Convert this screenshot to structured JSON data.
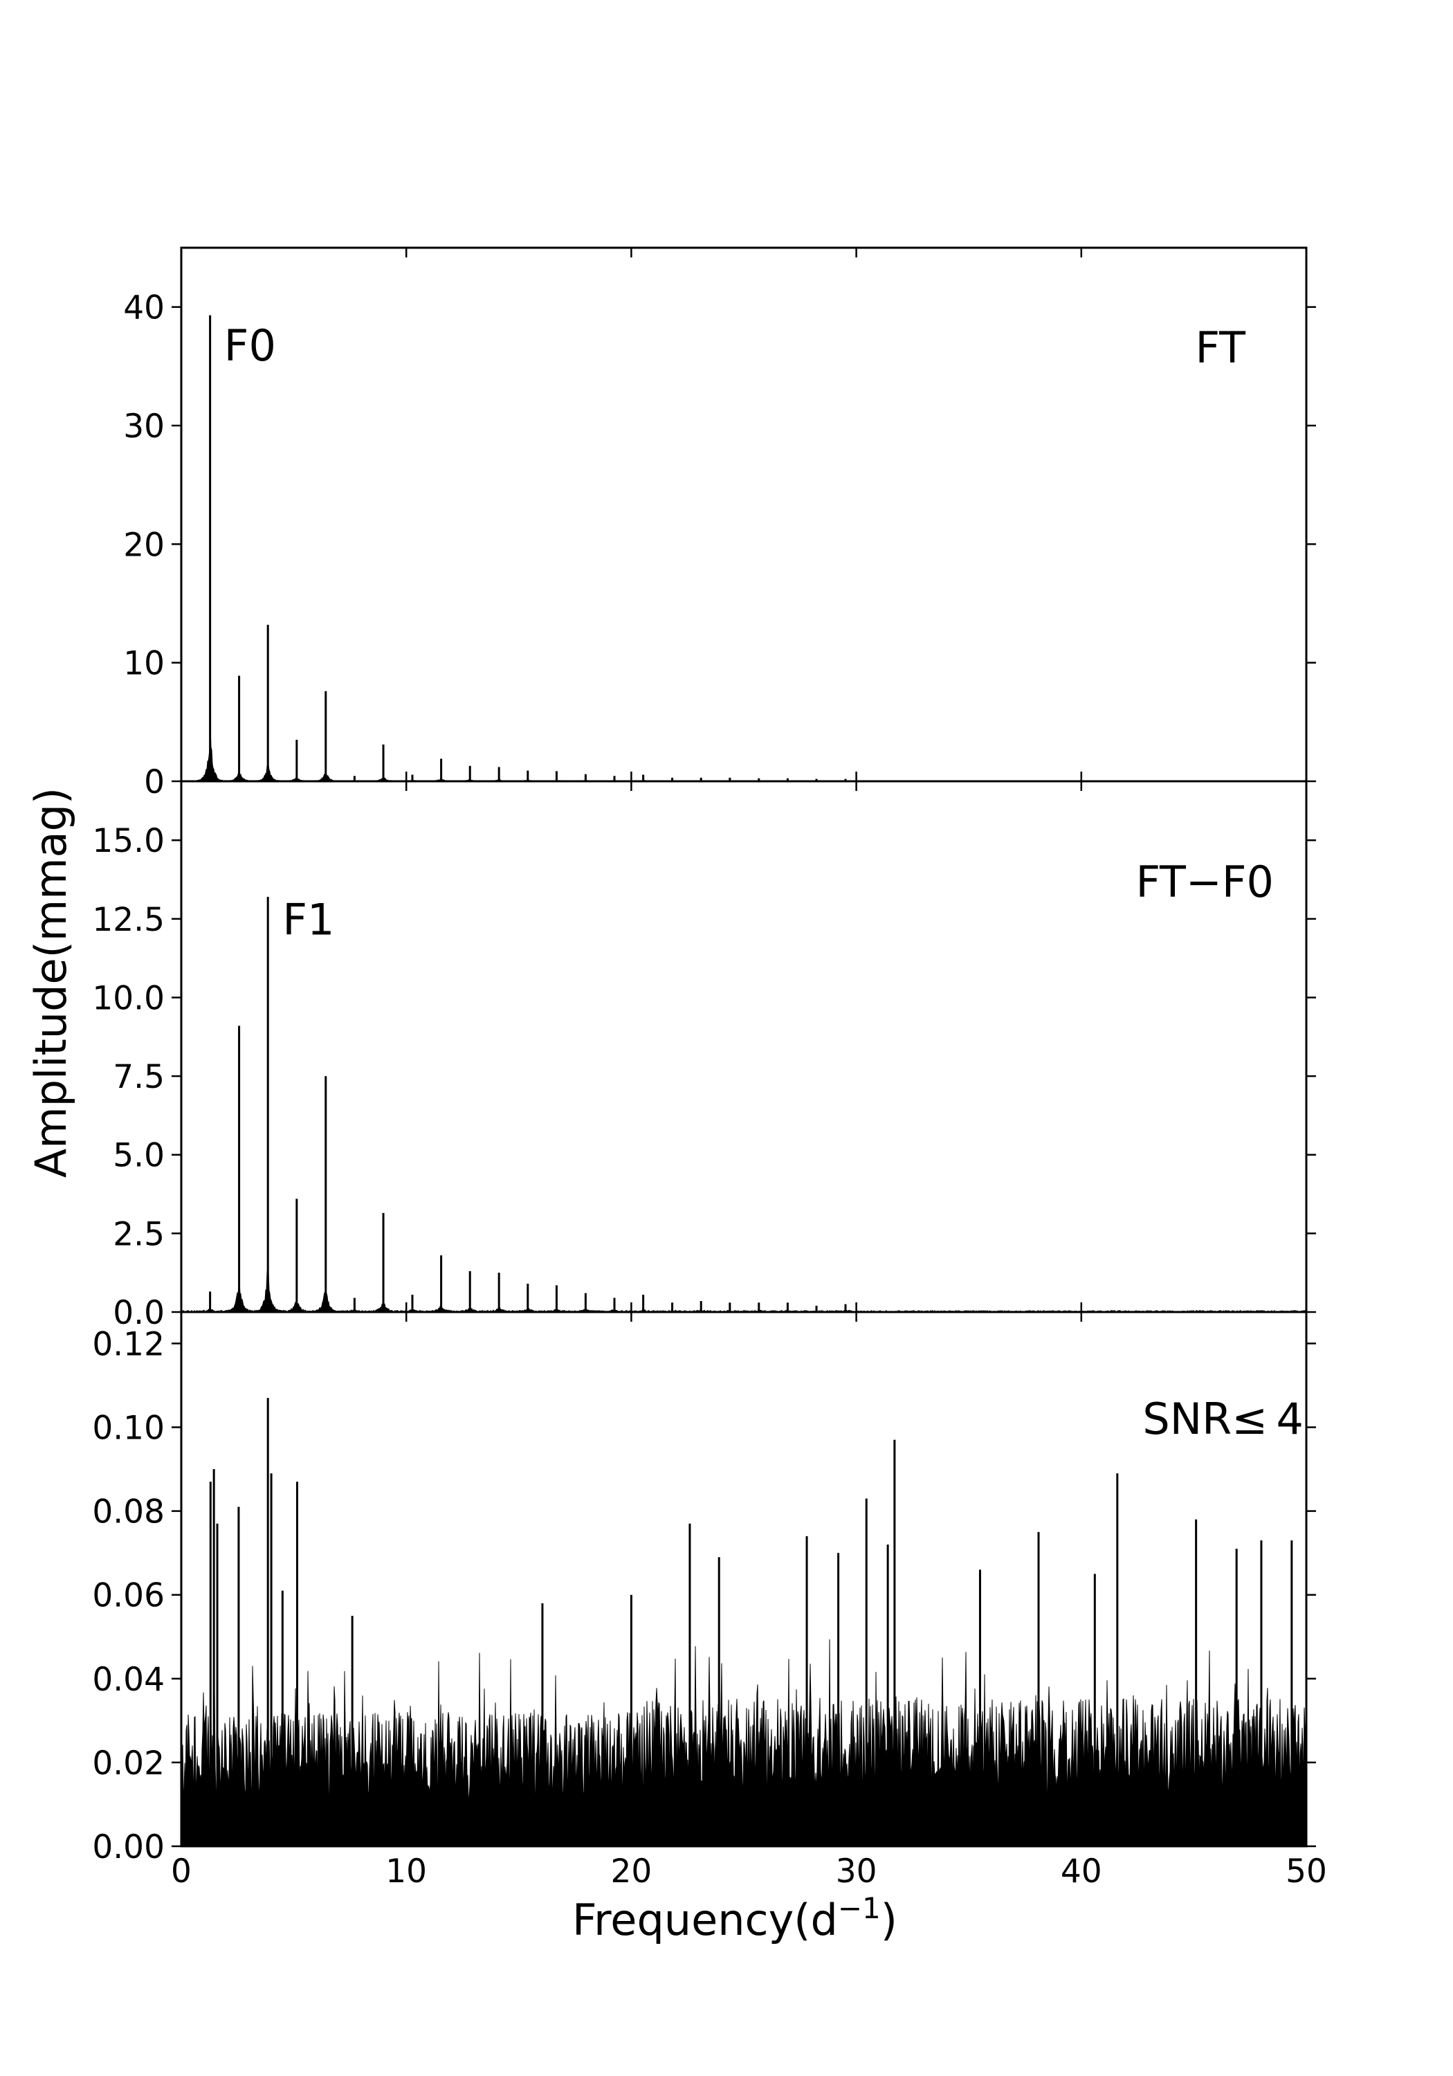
{
  "chart_data": {
    "type": "line",
    "xlabel": "Frequency(d",
    "xlabel_sup": "−1",
    "xlabel_close": ")",
    "ylabel": "Amplitude(mmag)",
    "xlim": [
      0,
      50
    ],
    "x_ticks": [
      0,
      10,
      20,
      30,
      40,
      50
    ],
    "grid": false,
    "panels": [
      {
        "id": "ft",
        "label": "FT",
        "ylim": [
          0,
          45
        ],
        "y_ticks": [
          0,
          10,
          20,
          30,
          40
        ],
        "y_tick_labels": [
          "0",
          "10",
          "20",
          "30",
          "40"
        ],
        "annotations": [
          {
            "text": "F0",
            "x": 1.9,
            "y": 35.5
          }
        ],
        "peaks": [
          [
            1.28,
            39.3
          ],
          [
            2.57,
            8.9
          ],
          [
            3.85,
            13.2
          ],
          [
            5.13,
            3.5
          ],
          [
            6.42,
            7.6
          ],
          [
            7.7,
            0.45
          ],
          [
            8.98,
            3.1
          ],
          [
            10.27,
            0.55
          ],
          [
            11.55,
            1.9
          ],
          [
            12.83,
            1.3
          ],
          [
            14.12,
            1.2
          ],
          [
            15.4,
            0.9
          ],
          [
            16.68,
            0.85
          ],
          [
            17.97,
            0.6
          ],
          [
            19.25,
            0.45
          ],
          [
            20.53,
            0.55
          ],
          [
            21.82,
            0.3
          ],
          [
            23.1,
            0.3
          ],
          [
            24.38,
            0.3
          ],
          [
            25.67,
            0.25
          ],
          [
            26.95,
            0.25
          ],
          [
            28.23,
            0.2
          ],
          [
            29.52,
            0.2
          ]
        ],
        "noise": 0.05
      },
      {
        "id": "ft-f0",
        "label": "FT−F0",
        "ylim": [
          0,
          16.875
        ],
        "y_ticks": [
          0,
          2.5,
          5,
          7.5,
          10,
          12.5,
          15
        ],
        "y_tick_labels": [
          "0.0",
          "2.5",
          "5.0",
          "7.5",
          "10.0",
          "12.5",
          "15.0"
        ],
        "annotations": [
          {
            "text": "F1",
            "x": 4.5,
            "y": 12.0
          }
        ],
        "peaks": [
          [
            1.28,
            0.65
          ],
          [
            2.57,
            9.1
          ],
          [
            3.85,
            13.2
          ],
          [
            5.13,
            3.6
          ],
          [
            6.42,
            7.5
          ],
          [
            7.7,
            0.45
          ],
          [
            8.98,
            3.15
          ],
          [
            10.27,
            0.55
          ],
          [
            11.55,
            1.8
          ],
          [
            12.83,
            1.3
          ],
          [
            14.12,
            1.25
          ],
          [
            15.4,
            0.9
          ],
          [
            16.68,
            0.85
          ],
          [
            17.97,
            0.6
          ],
          [
            19.25,
            0.45
          ],
          [
            20.53,
            0.55
          ],
          [
            21.82,
            0.3
          ],
          [
            23.1,
            0.35
          ],
          [
            24.38,
            0.3
          ],
          [
            25.67,
            0.3
          ],
          [
            26.95,
            0.3
          ],
          [
            28.23,
            0.2
          ],
          [
            29.52,
            0.25
          ]
        ],
        "noise": 0.05
      },
      {
        "id": "snr",
        "label": "SNR≤ 4",
        "ylim": [
          0,
          0.1275
        ],
        "y_ticks": [
          0,
          0.02,
          0.04,
          0.06,
          0.08,
          0.1,
          0.12
        ],
        "y_tick_labels": [
          "0.00",
          "0.02",
          "0.04",
          "0.06",
          "0.08",
          "0.10",
          "0.12"
        ],
        "annotations": [],
        "peaks": [
          [
            1.3,
            0.087
          ],
          [
            1.45,
            0.09
          ],
          [
            1.6,
            0.077
          ],
          [
            2.55,
            0.081
          ],
          [
            3.85,
            0.107
          ],
          [
            4.0,
            0.089
          ],
          [
            4.5,
            0.061
          ],
          [
            5.15,
            0.087
          ],
          [
            7.6,
            0.055
          ],
          [
            16.05,
            0.058
          ],
          [
            20.0,
            0.06
          ],
          [
            22.6,
            0.077
          ],
          [
            23.9,
            0.069
          ],
          [
            27.8,
            0.074
          ],
          [
            29.2,
            0.07
          ],
          [
            30.45,
            0.083
          ],
          [
            31.4,
            0.072
          ],
          [
            31.7,
            0.097
          ],
          [
            35.5,
            0.066
          ],
          [
            38.1,
            0.075
          ],
          [
            40.6,
            0.065
          ],
          [
            41.6,
            0.089
          ],
          [
            45.1,
            0.078
          ],
          [
            46.9,
            0.071
          ],
          [
            48.0,
            0.073
          ],
          [
            49.35,
            0.073
          ]
        ],
        "noise": 0.032
      }
    ]
  }
}
